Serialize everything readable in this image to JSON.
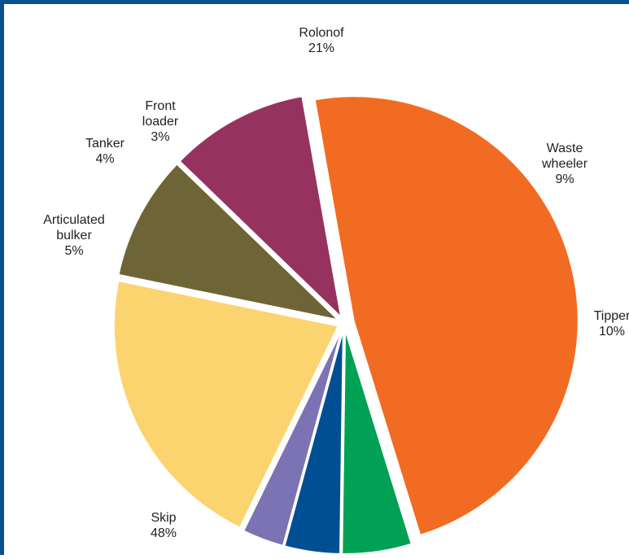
{
  "chart_data": {
    "type": "pie",
    "slices": [
      {
        "name": "Rolonof",
        "value": 21,
        "label_lines": [
          "Rolonof"
        ],
        "pct_label": "21%",
        "color": "#fcd46f"
      },
      {
        "name": "Waste wheeler",
        "value": 9,
        "label_lines": [
          "Waste",
          "wheeler"
        ],
        "pct_label": "9%",
        "color": "#6e6536"
      },
      {
        "name": "Tipper",
        "value": 10,
        "label_lines": [
          "Tipper"
        ],
        "pct_label": "10%",
        "color": "#963260"
      },
      {
        "name": "Skip",
        "value": 48,
        "label_lines": [
          "Skip"
        ],
        "pct_label": "48%",
        "color": "#f26b22"
      },
      {
        "name": "Articulated bulker",
        "value": 5,
        "label_lines": [
          "Articulated",
          "bulker"
        ],
        "pct_label": "5%",
        "color": "#00a154"
      },
      {
        "name": "Tanker",
        "value": 4,
        "label_lines": [
          "Tanker"
        ],
        "pct_label": "4%",
        "color": "#004f93"
      },
      {
        "name": "Front loader",
        "value": 3,
        "label_lines": [
          "Front",
          "loader"
        ],
        "pct_label": "3%",
        "color": "#7c73b5"
      }
    ]
  },
  "frame_color": "#0b4f8c"
}
